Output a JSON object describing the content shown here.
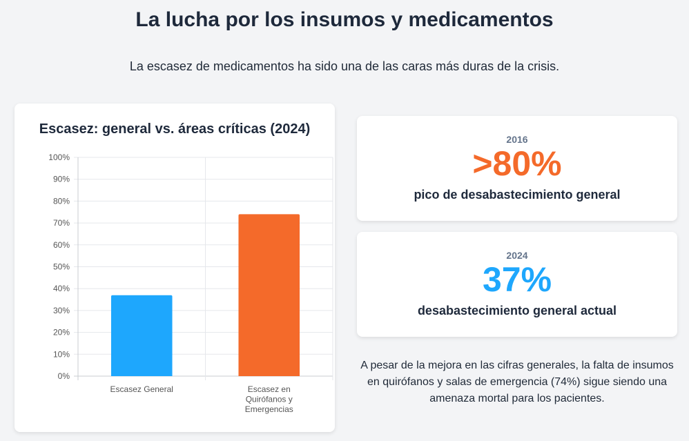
{
  "header": {
    "title": "La lucha por los insumos y medicamentos",
    "subtitle": "La escasez de medicamentos ha sido una de las caras más duras de la crisis."
  },
  "chart_data": {
    "type": "bar",
    "title": "Escasez: general vs. áreas críticas (2024)",
    "categories": [
      [
        "Escasez General"
      ],
      [
        "Escasez en",
        "Quirófanos y",
        "Emergencias"
      ]
    ],
    "values": [
      37,
      74
    ],
    "colors": [
      "#1ea7fd",
      "#f46a2a"
    ],
    "ylim": [
      0,
      100
    ],
    "yticks": [
      "0%",
      "10%",
      "20%",
      "30%",
      "40%",
      "50%",
      "60%",
      "70%",
      "80%",
      "90%",
      "100%"
    ],
    "grid": true,
    "legend": "none"
  },
  "stats": [
    {
      "year": "2016",
      "value": ">80%",
      "label": "pico de desabastecimiento general",
      "color": "#f46a2a"
    },
    {
      "year": "2024",
      "value": "37%",
      "label": "desabastecimiento general actual",
      "color": "#1ea7fd"
    }
  ],
  "note": "A pesar de la mejora en las cifras generales, la falta de insumos en quirófanos y salas de emergencia (74%) sigue siendo una amenaza mortal para los pacientes."
}
